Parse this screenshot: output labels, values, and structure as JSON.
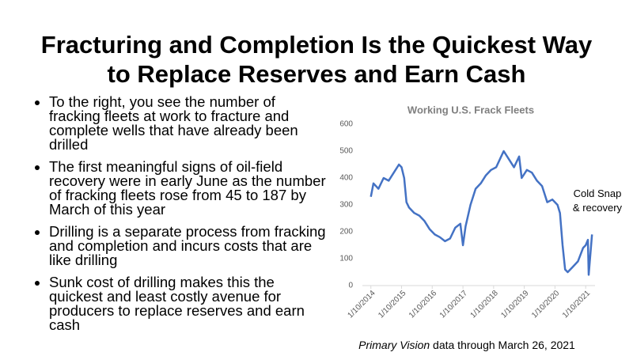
{
  "header": {
    "title": "Fracturing and Completion Is the Quickest Way to Replace Reserves and Earn Cash"
  },
  "bullets": [
    "To the right, you see the number of fracking fleets at work to fracture and complete wells that have already been drilled",
    "The first meaningful signs of oil-field recovery were in early June as the number of fracking fleets rose from 45 to 187 by March of this year",
    "Drilling is a separate process from fracking and completion and incurs costs that are like drilling",
    "Sunk cost of drilling makes this the quickest and least costly avenue for producers to replace reserves and earn cash"
  ],
  "footer": {
    "source": "Primary Vision",
    "text": "data through March 26, 2021"
  },
  "chart_data": {
    "type": "line",
    "title": "Working U.S. Frack Fleets",
    "annotation": "Cold Snap & recovery",
    "x": [
      "2014-01-10",
      "2014-02-10",
      "2014-04-10",
      "2014-06-10",
      "2014-08-10",
      "2014-10-10",
      "2014-12-10",
      "2015-01-10",
      "2015-02-10",
      "2015-03-10",
      "2015-04-10",
      "2015-06-10",
      "2015-08-10",
      "2015-10-10",
      "2015-12-10",
      "2016-02-10",
      "2016-04-10",
      "2016-06-10",
      "2016-08-10",
      "2016-10-10",
      "2016-12-10",
      "2017-01-10",
      "2017-02-10",
      "2017-04-10",
      "2017-06-10",
      "2017-08-10",
      "2017-10-10",
      "2017-12-10",
      "2018-02-10",
      "2018-04-10",
      "2018-05-10",
      "2018-07-10",
      "2018-09-10",
      "2018-11-10",
      "2018-12-10",
      "2019-02-10",
      "2019-04-10",
      "2019-06-10",
      "2019-08-10",
      "2019-10-10",
      "2019-12-10",
      "2020-02-10",
      "2020-03-10",
      "2020-04-10",
      "2020-05-10",
      "2020-06-10",
      "2020-08-10",
      "2020-10-10",
      "2020-12-10",
      "2021-01-10",
      "2021-02-05",
      "2021-02-15",
      "2021-03-26"
    ],
    "series": [
      {
        "name": "Working U.S. Frack Fleets",
        "color": "#4472c4",
        "values": [
          330,
          380,
          360,
          400,
          390,
          420,
          450,
          440,
          400,
          310,
          290,
          270,
          260,
          240,
          210,
          190,
          180,
          165,
          175,
          215,
          230,
          150,
          220,
          300,
          360,
          380,
          410,
          430,
          440,
          480,
          500,
          470,
          440,
          480,
          400,
          430,
          420,
          390,
          370,
          310,
          320,
          300,
          270,
          150,
          60,
          50,
          70,
          90,
          140,
          150,
          170,
          40,
          190
        ]
      }
    ],
    "xlim": [
      "2013-10-01",
      "2021-05-01"
    ],
    "xticks": [
      {
        "value": "2014-01-10",
        "label": "1/10/2014"
      },
      {
        "value": "2015-01-10",
        "label": "1/10/2015"
      },
      {
        "value": "2016-01-10",
        "label": "1/10/2016"
      },
      {
        "value": "2017-01-10",
        "label": "1/10/2017"
      },
      {
        "value": "2018-01-10",
        "label": "1/10/2018"
      },
      {
        "value": "2019-01-10",
        "label": "1/10/2019"
      },
      {
        "value": "2020-01-10",
        "label": "1/10/2020"
      },
      {
        "value": "2021-01-10",
        "label": "1/10/2021"
      }
    ],
    "ylim": [
      0,
      600
    ],
    "yticks": [
      0,
      100,
      200,
      300,
      400,
      500,
      600
    ],
    "grid": false
  }
}
